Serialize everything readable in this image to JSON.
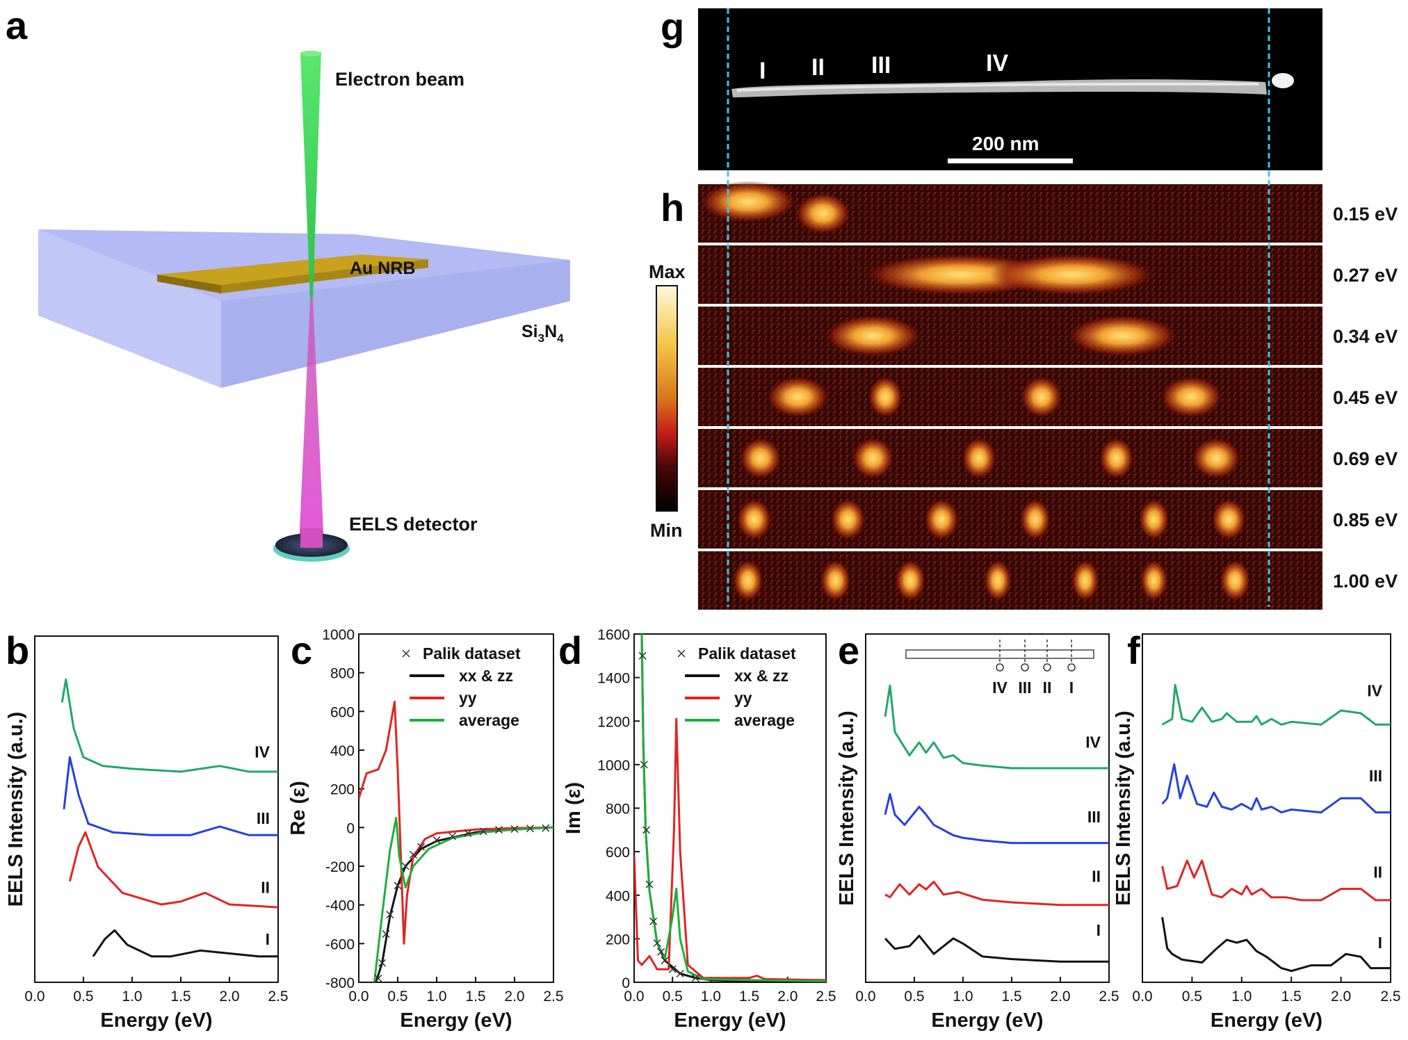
{
  "panel_letters": {
    "a": "a",
    "b": "b",
    "c": "c",
    "d": "d",
    "e": "e",
    "f": "f",
    "g": "g",
    "h": "h"
  },
  "schematic": {
    "electron_beam": "Electron beam",
    "au_nrb": "Au NRB",
    "substrate_base": "Si",
    "substrate_sub1": "3",
    "substrate_mid": "N",
    "substrate_sub2": "4",
    "detector": "EELS detector"
  },
  "image_g": {
    "roman": [
      "I",
      "II",
      "III",
      "IV"
    ],
    "scalebar_label": "200 nm"
  },
  "maps_h": {
    "energies": [
      "0.15 eV",
      "0.27 eV",
      "0.34 eV",
      "0.45 eV",
      "0.69 eV",
      "0.85 eV",
      "1.00 eV"
    ],
    "colorbar_max": "Max",
    "colorbar_min": "Min"
  },
  "colors": {
    "black": "#111111",
    "red": "#e02424",
    "green": "#1fae3c",
    "blue": "#2640e0",
    "teal": "#20a868",
    "dash": "#3fc5e8"
  },
  "chart_data": [
    {
      "id": "b",
      "type": "line",
      "xlabel": "Energy (eV)",
      "ylabel": "EELS Intensity (a.u.)",
      "xlim": [
        0,
        2.5
      ],
      "xticks": [
        "0.0",
        "0.5",
        "1.0",
        "1.5",
        "2.0",
        "2.5"
      ],
      "series": [
        {
          "name": "IV",
          "color": "#20a868",
          "x": [
            0.28,
            0.32,
            0.4,
            0.5,
            0.7,
            1.0,
            1.5,
            1.9,
            2.2,
            2.5
          ],
          "y": [
            0.92,
            1.0,
            0.83,
            0.73,
            0.7,
            0.69,
            0.68,
            0.7,
            0.68,
            0.68
          ]
        },
        {
          "name": "III",
          "color": "#2640e0",
          "x": [
            0.3,
            0.36,
            0.45,
            0.55,
            0.8,
            1.2,
            1.6,
            1.9,
            2.2,
            2.5
          ],
          "y": [
            0.55,
            0.73,
            0.6,
            0.5,
            0.47,
            0.46,
            0.46,
            0.49,
            0.46,
            0.46
          ]
        },
        {
          "name": "II",
          "color": "#e02424",
          "x": [
            0.36,
            0.45,
            0.52,
            0.65,
            0.9,
            1.3,
            1.5,
            1.75,
            2.0,
            2.5
          ],
          "y": [
            0.3,
            0.42,
            0.47,
            0.35,
            0.26,
            0.22,
            0.23,
            0.26,
            0.22,
            0.21
          ]
        },
        {
          "name": "I",
          "color": "#111111",
          "x": [
            0.6,
            0.72,
            0.82,
            0.95,
            1.2,
            1.4,
            1.7,
            2.0,
            2.3,
            2.5
          ],
          "y": [
            0.04,
            0.1,
            0.13,
            0.08,
            0.04,
            0.04,
            0.06,
            0.05,
            0.04,
            0.04
          ]
        }
      ]
    },
    {
      "id": "c",
      "type": "line",
      "xlabel": "Energy (eV)",
      "ylabel": "Re (ε)",
      "xlim": [
        0,
        2.5
      ],
      "ylim": [
        -800,
        1000
      ],
      "xticks": [
        "0.0",
        "0.5",
        "1.0",
        "1.5",
        "2.0",
        "2.5"
      ],
      "yticks": [
        "-800",
        "-600",
        "-400",
        "-200",
        "0",
        "200",
        "400",
        "600",
        "800",
        "1000"
      ],
      "legend": [
        "Palik dataset",
        "xx & zz",
        "yy",
        "average"
      ],
      "series": [
        {
          "name": "xx & zz",
          "color": "#111111",
          "x": [
            0.22,
            0.3,
            0.4,
            0.5,
            0.6,
            0.8,
            1.0,
            1.5,
            2.0,
            2.5
          ],
          "y": [
            -800,
            -700,
            -460,
            -300,
            -200,
            -110,
            -70,
            -25,
            -10,
            0
          ]
        },
        {
          "name": "yy",
          "color": "#e02424",
          "x": [
            0.0,
            0.1,
            0.25,
            0.35,
            0.46,
            0.5,
            0.58,
            0.62,
            0.7,
            0.85,
            1.0,
            1.5,
            2.0,
            2.5
          ],
          "y": [
            150,
            280,
            300,
            400,
            650,
            300,
            -600,
            -350,
            -150,
            -60,
            -30,
            -10,
            -3,
            0
          ]
        },
        {
          "name": "average",
          "color": "#1fae3c",
          "x": [
            0.2,
            0.3,
            0.4,
            0.48,
            0.52,
            0.6,
            0.7,
            0.9,
            1.2,
            1.6,
            2.0,
            2.5
          ],
          "y": [
            -800,
            -450,
            -120,
            50,
            -150,
            -310,
            -200,
            -110,
            -55,
            -25,
            -10,
            0
          ]
        },
        {
          "name": "Palik dataset",
          "color": "#111111",
          "marker": "x",
          "x": [
            0.25,
            0.3,
            0.35,
            0.4,
            0.5,
            0.6,
            0.7,
            0.8,
            1.0,
            1.2,
            1.4,
            1.6,
            1.8,
            2.0,
            2.2,
            2.4
          ],
          "y": [
            -780,
            -700,
            -550,
            -450,
            -300,
            -200,
            -140,
            -100,
            -65,
            -45,
            -30,
            -20,
            -12,
            -8,
            -5,
            -3
          ]
        }
      ]
    },
    {
      "id": "d",
      "type": "line",
      "xlabel": "Energy (eV)",
      "ylabel": "Im (ε)",
      "xlim": [
        0,
        2.5
      ],
      "ylim": [
        0,
        1600
      ],
      "xticks": [
        "0.0",
        "0.5",
        "1.0",
        "1.5",
        "2.0",
        "2.5"
      ],
      "yticks": [
        "0",
        "200",
        "400",
        "600",
        "800",
        "1000",
        "1200",
        "1400",
        "1600"
      ],
      "legend": [
        "Palik dataset",
        "xx & zz",
        "yy",
        "average"
      ],
      "series": [
        {
          "name": "xx & zz",
          "color": "#111111",
          "x": [
            0.1,
            0.12,
            0.15,
            0.2,
            0.3,
            0.4,
            0.6,
            0.8,
            1.0,
            1.5,
            2.0,
            2.5
          ],
          "y": [
            1600,
            1100,
            700,
            420,
            180,
            100,
            40,
            20,
            10,
            5,
            5,
            3
          ]
        },
        {
          "name": "yy",
          "color": "#e02424",
          "x": [
            0.0,
            0.05,
            0.1,
            0.2,
            0.3,
            0.45,
            0.52,
            0.55,
            0.6,
            0.7,
            0.9,
            1.5,
            1.6,
            1.7,
            2.5
          ],
          "y": [
            580,
            100,
            80,
            120,
            60,
            60,
            700,
            1210,
            600,
            80,
            20,
            20,
            30,
            15,
            10
          ]
        },
        {
          "name": "average",
          "color": "#1fae3c",
          "x": [
            0.1,
            0.12,
            0.15,
            0.2,
            0.3,
            0.4,
            0.5,
            0.55,
            0.6,
            0.7,
            0.9,
            1.5,
            2.5
          ],
          "y": [
            1600,
            1100,
            700,
            420,
            180,
            110,
            300,
            430,
            200,
            50,
            15,
            10,
            5
          ]
        },
        {
          "name": "Palik dataset",
          "color": "#111111",
          "marker": "x",
          "x": [
            0.11,
            0.13,
            0.16,
            0.2,
            0.25,
            0.3,
            0.35,
            0.4,
            0.5,
            0.6,
            0.8
          ],
          "y": [
            1500,
            1000,
            700,
            450,
            280,
            180,
            140,
            100,
            60,
            40,
            20
          ]
        }
      ]
    },
    {
      "id": "e",
      "type": "line",
      "xlabel": "Energy (eV)",
      "ylabel": "EELS Intensity (a.u.)",
      "xlim": [
        0,
        2.5
      ],
      "xticks": [
        "0.0",
        "0.5",
        "1.0",
        "1.5",
        "2.0",
        "2.5"
      ],
      "inset_labels": [
        "IV",
        "III",
        "II",
        "I"
      ],
      "series": [
        {
          "name": "IV",
          "color": "#20a868",
          "x": [
            0.2,
            0.25,
            0.3,
            0.45,
            0.55,
            0.62,
            0.7,
            0.8,
            0.9,
            1.0,
            1.2,
            1.5,
            2.0,
            2.5
          ],
          "y": [
            0.88,
            1.0,
            0.82,
            0.73,
            0.78,
            0.74,
            0.78,
            0.72,
            0.73,
            0.7,
            0.69,
            0.68,
            0.68,
            0.68
          ]
        },
        {
          "name": "III",
          "color": "#2640e0",
          "x": [
            0.2,
            0.25,
            0.3,
            0.4,
            0.55,
            0.62,
            0.7,
            0.8,
            0.9,
            1.0,
            1.2,
            1.5,
            2.0,
            2.5
          ],
          "y": [
            0.5,
            0.58,
            0.5,
            0.46,
            0.53,
            0.5,
            0.46,
            0.44,
            0.42,
            0.41,
            0.4,
            0.39,
            0.39,
            0.39
          ]
        },
        {
          "name": "II",
          "color": "#e02424",
          "x": [
            0.2,
            0.25,
            0.35,
            0.45,
            0.55,
            0.62,
            0.7,
            0.8,
            0.95,
            1.2,
            1.5,
            2.0,
            2.5
          ],
          "y": [
            0.19,
            0.18,
            0.23,
            0.19,
            0.23,
            0.21,
            0.24,
            0.19,
            0.2,
            0.17,
            0.16,
            0.15,
            0.15
          ]
        },
        {
          "name": "I",
          "color": "#111111",
          "x": [
            0.2,
            0.3,
            0.45,
            0.55,
            0.7,
            0.9,
            1.0,
            1.2,
            1.5,
            2.0,
            2.5
          ],
          "y": [
            0.02,
            -0.02,
            -0.01,
            0.03,
            -0.04,
            0.02,
            0.0,
            -0.05,
            -0.06,
            -0.07,
            -0.07
          ]
        }
      ]
    },
    {
      "id": "f",
      "type": "line",
      "xlabel": "Energy (eV)",
      "ylabel": "EELS Intensity (a.u.)",
      "xlim": [
        0,
        2.5
      ],
      "xticks": [
        "0.0",
        "0.5",
        "1.0",
        "1.5",
        "2.0",
        "2.5"
      ],
      "series": [
        {
          "name": "IV",
          "color": "#20a868",
          "x": [
            0.2,
            0.3,
            0.33,
            0.4,
            0.5,
            0.6,
            0.7,
            0.8,
            0.85,
            0.95,
            1.1,
            1.15,
            1.2,
            1.3,
            1.4,
            1.5,
            1.8,
            2.0,
            2.2,
            2.35,
            2.5
          ],
          "y": [
            0.86,
            0.88,
            1.0,
            0.88,
            0.87,
            0.92,
            0.87,
            0.88,
            0.9,
            0.87,
            0.87,
            0.89,
            0.86,
            0.88,
            0.86,
            0.87,
            0.86,
            0.91,
            0.9,
            0.86,
            0.86
          ]
        },
        {
          "name": "III",
          "color": "#2640e0",
          "x": [
            0.2,
            0.25,
            0.32,
            0.38,
            0.45,
            0.55,
            0.65,
            0.72,
            0.8,
            0.9,
            1.0,
            1.1,
            1.15,
            1.2,
            1.3,
            1.4,
            1.5,
            1.8,
            2.0,
            2.2,
            2.35,
            2.5
          ],
          "y": [
            0.58,
            0.6,
            0.72,
            0.6,
            0.68,
            0.58,
            0.57,
            0.62,
            0.57,
            0.56,
            0.58,
            0.56,
            0.6,
            0.56,
            0.57,
            0.55,
            0.56,
            0.55,
            0.6,
            0.6,
            0.55,
            0.55
          ]
        },
        {
          "name": "II",
          "color": "#e02424",
          "x": [
            0.2,
            0.25,
            0.35,
            0.45,
            0.52,
            0.6,
            0.7,
            0.8,
            0.9,
            1.0,
            1.05,
            1.1,
            1.2,
            1.3,
            1.45,
            1.6,
            1.8,
            2.0,
            2.2,
            2.35,
            2.5
          ],
          "y": [
            0.36,
            0.28,
            0.29,
            0.38,
            0.32,
            0.38,
            0.26,
            0.25,
            0.28,
            0.26,
            0.29,
            0.26,
            0.28,
            0.25,
            0.25,
            0.24,
            0.24,
            0.28,
            0.28,
            0.24,
            0.24
          ]
        },
        {
          "name": "I",
          "color": "#111111",
          "x": [
            0.2,
            0.25,
            0.3,
            0.4,
            0.6,
            0.75,
            0.85,
            0.95,
            1.05,
            1.15,
            1.25,
            1.4,
            1.5,
            1.7,
            1.9,
            2.05,
            2.2,
            2.3,
            2.5
          ],
          "y": [
            0.18,
            0.07,
            0.05,
            0.03,
            0.02,
            0.07,
            0.1,
            0.09,
            0.1,
            0.06,
            0.04,
            0.0,
            -0.01,
            0.01,
            0.01,
            0.05,
            0.04,
            0.0,
            0.0
          ]
        }
      ]
    }
  ]
}
